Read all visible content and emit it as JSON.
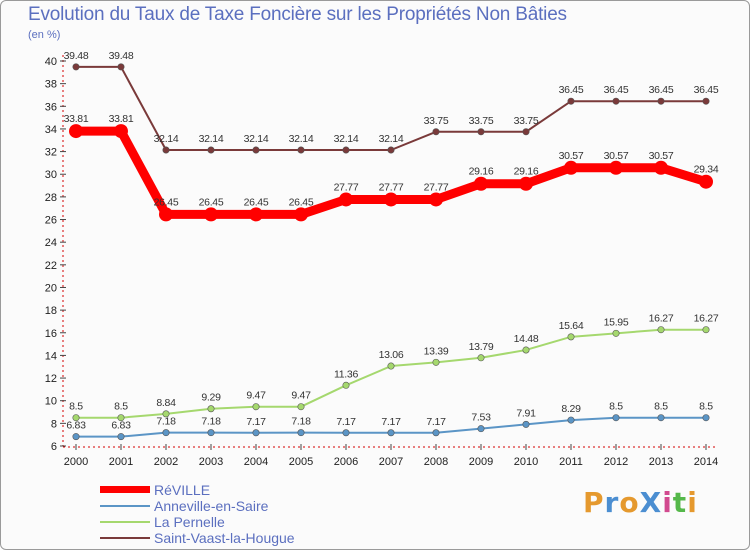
{
  "title": "Evolution du Taux de Taxe Foncière sur les Propriétés Non Bâties",
  "unit": "(en %)",
  "logo": "ProXiti",
  "chart_data": {
    "type": "line",
    "x": [
      "2000",
      "2001",
      "2002",
      "2003",
      "2004",
      "2005",
      "2006",
      "2007",
      "2008",
      "2009",
      "2010",
      "2011",
      "2012",
      "2013",
      "2014"
    ],
    "ylim": [
      6,
      40
    ],
    "yticks": [
      6,
      8,
      10,
      12,
      14,
      16,
      18,
      20,
      22,
      24,
      26,
      28,
      30,
      32,
      34,
      36,
      38,
      40
    ],
    "grid": false,
    "legend_position": "bottom-left",
    "series": [
      {
        "name": "RéVILLE",
        "color": "#ff0000",
        "values": [
          33.81,
          33.81,
          26.45,
          26.45,
          26.45,
          26.45,
          27.77,
          27.77,
          27.77,
          29.16,
          29.16,
          30.57,
          30.57,
          30.57,
          29.34
        ]
      },
      {
        "name": "Anneville-en-Saire",
        "color": "#5b95c6",
        "values": [
          6.83,
          6.83,
          7.18,
          7.18,
          7.17,
          7.18,
          7.17,
          7.17,
          7.17,
          7.53,
          7.91,
          8.29,
          8.5,
          8.5,
          8.5
        ]
      },
      {
        "name": "La Pernelle",
        "color": "#a5d86e",
        "values": [
          8.5,
          8.5,
          8.84,
          9.29,
          9.47,
          9.47,
          11.36,
          13.06,
          13.39,
          13.79,
          14.48,
          15.64,
          15.95,
          16.27,
          16.27
        ]
      },
      {
        "name": "Saint-Vaast-la-Hougue",
        "color": "#7a3a3a",
        "values": [
          39.48,
          39.48,
          32.14,
          32.14,
          32.14,
          32.14,
          32.14,
          32.14,
          33.75,
          33.75,
          33.75,
          36.45,
          36.45,
          36.45,
          36.45
        ]
      }
    ]
  }
}
